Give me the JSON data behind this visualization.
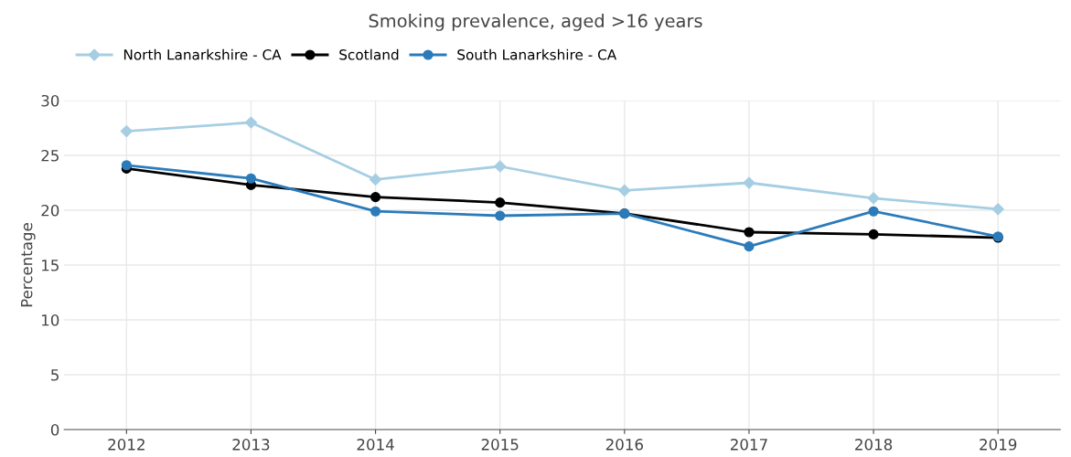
{
  "chart_data": {
    "type": "line",
    "title": "Smoking prevalence, aged >16 years",
    "ylabel": "Percentage",
    "categories": [
      "2012",
      "2013",
      "2014",
      "2015",
      "2016",
      "2017",
      "2018",
      "2019"
    ],
    "series": [
      {
        "name": "North Lanarkshire - CA",
        "color": "#a6cee3",
        "marker": "diamond",
        "values": [
          27.2,
          28.0,
          22.8,
          24.0,
          21.8,
          22.5,
          21.1,
          20.1
        ]
      },
      {
        "name": "Scotland",
        "color": "#000000",
        "marker": "circle",
        "values": [
          23.8,
          22.3,
          21.2,
          20.7,
          19.7,
          18.0,
          17.8,
          17.5
        ]
      },
      {
        "name": "South Lanarkshire - CA",
        "color": "#2b7bba",
        "marker": "circle",
        "values": [
          24.1,
          22.9,
          19.9,
          19.5,
          19.7,
          16.7,
          19.9,
          17.6
        ]
      }
    ],
    "ylim": [
      0,
      30
    ],
    "yticks": [
      0,
      5,
      10,
      15,
      20,
      25,
      30
    ],
    "grid": true,
    "legend": "top left",
    "line_style": "solid"
  }
}
